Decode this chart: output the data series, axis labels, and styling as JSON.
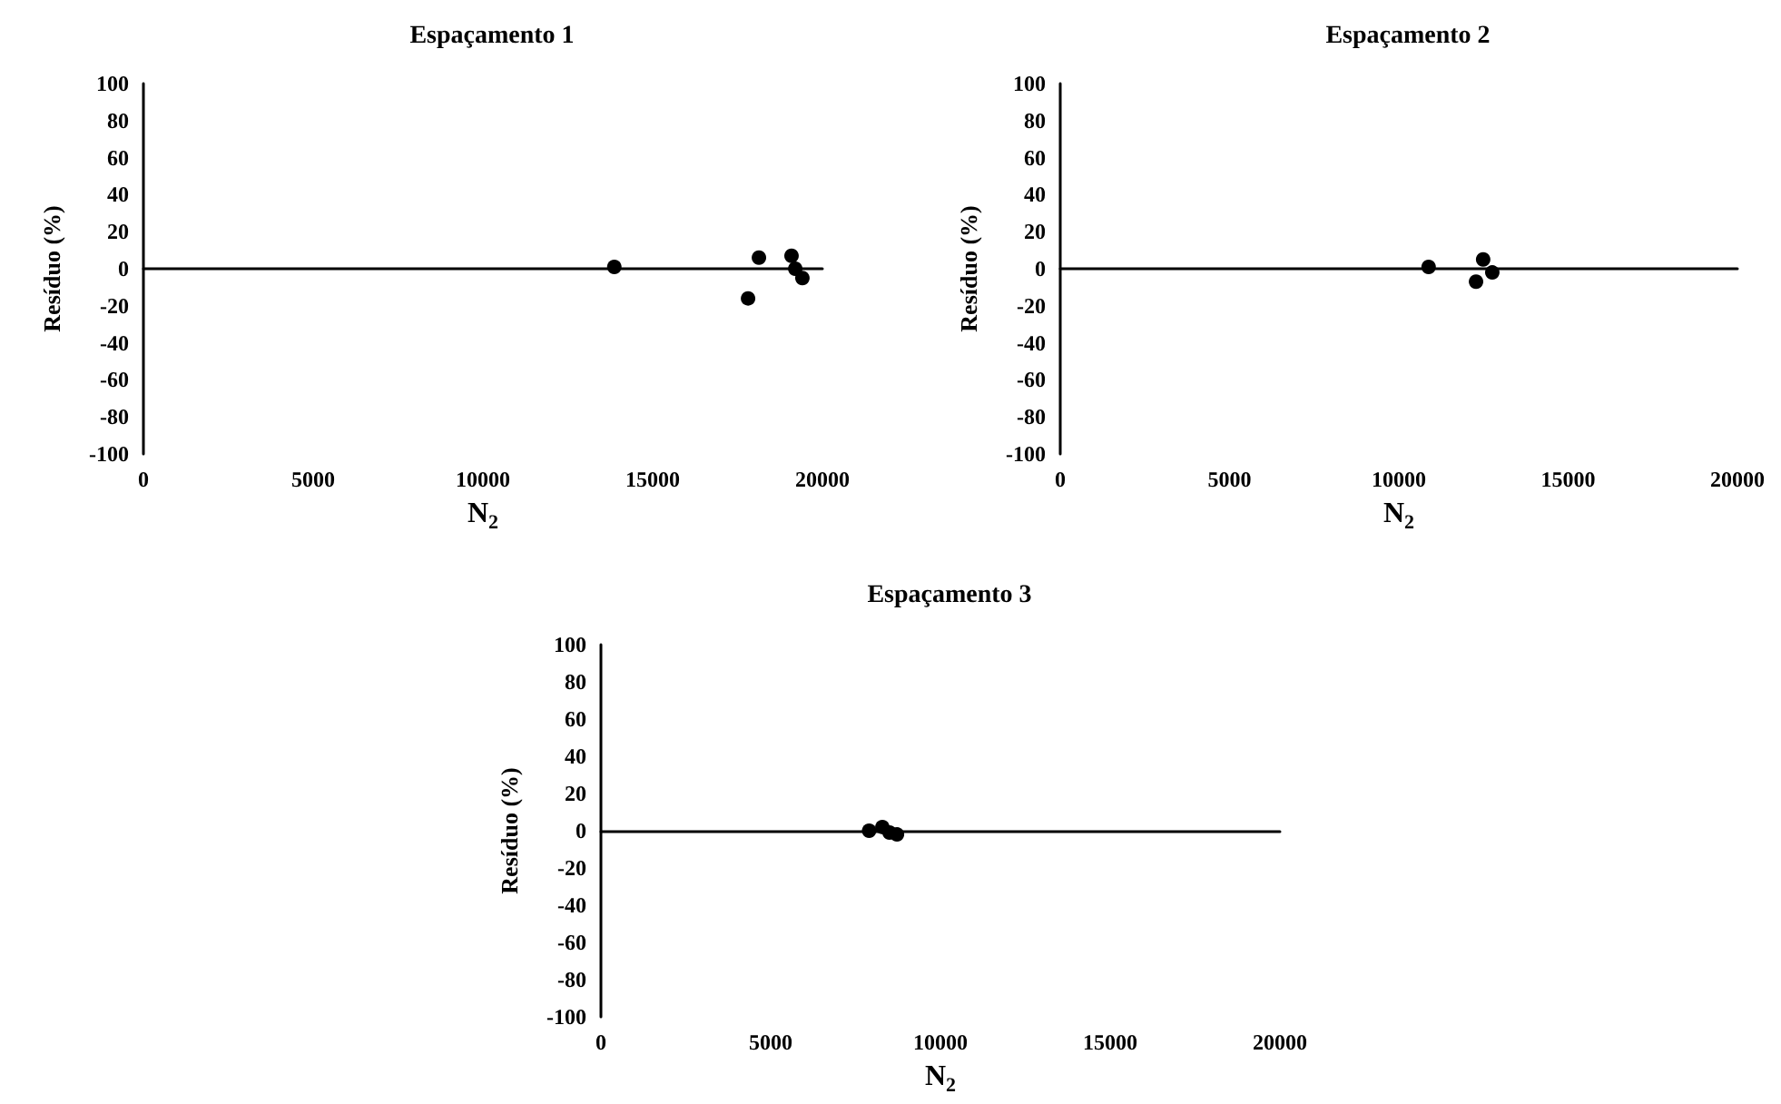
{
  "chart_data": [
    {
      "type": "scatter",
      "title": "Espaçamento 1",
      "xlabel": "N$_{2}$",
      "ylabel": "Resíduo (%)",
      "marker": "circle",
      "series": [
        {
          "color": "#000000",
          "x": [
            13870,
            17810,
            18130,
            19090,
            19200,
            19410
          ],
          "values": [
            1,
            -16,
            6,
            7,
            0,
            -5
          ]
        }
      ],
      "xlim": [
        0,
        20000
      ],
      "xticks": [
        0,
        5000,
        10000,
        15000,
        20000
      ],
      "ylim": [
        -100,
        100
      ],
      "yticks": [
        -100,
        -80,
        -60,
        -40,
        -20,
        0,
        20,
        40,
        60,
        80,
        100
      ]
    },
    {
      "type": "scatter",
      "title": "Espaçamento 2",
      "xlabel": "N$_{2}$",
      "ylabel": "Resíduo (%)",
      "marker": "circle",
      "series": [
        {
          "color": "#000000",
          "x": [
            10880,
            12280,
            12390,
            12490,
            12700,
            12760
          ],
          "values": [
            1,
            -7,
            null,
            5,
            null,
            -2
          ]
        }
      ],
      "xlim": [
        0,
        20000
      ],
      "xticks": [
        0,
        5000,
        10000,
        15000,
        20000
      ],
      "ylim": [
        -100,
        100
      ],
      "yticks": [
        -100,
        -80,
        -60,
        -40,
        -20,
        0,
        20,
        40,
        60,
        80,
        100
      ]
    },
    {
      "type": "scatter",
      "title": "Espaçamento 3",
      "xlabel": "N$_{2}$",
      "ylabel": "Resíduo (%)",
      "marker": "circle",
      "series": [
        {
          "color": "#000000",
          "x": [
            7900,
            8290,
            8500,
            8720
          ],
          "values": [
            0,
            2,
            -1,
            -2
          ]
        }
      ],
      "xlim": [
        0,
        20000
      ],
      "xticks": [
        0,
        5000,
        10000,
        15000,
        20000
      ],
      "ylim": [
        -100,
        100
      ],
      "yticks": [
        -100,
        -80,
        -60,
        -40,
        -20,
        0,
        20,
        40,
        60,
        80,
        100
      ]
    }
  ]
}
